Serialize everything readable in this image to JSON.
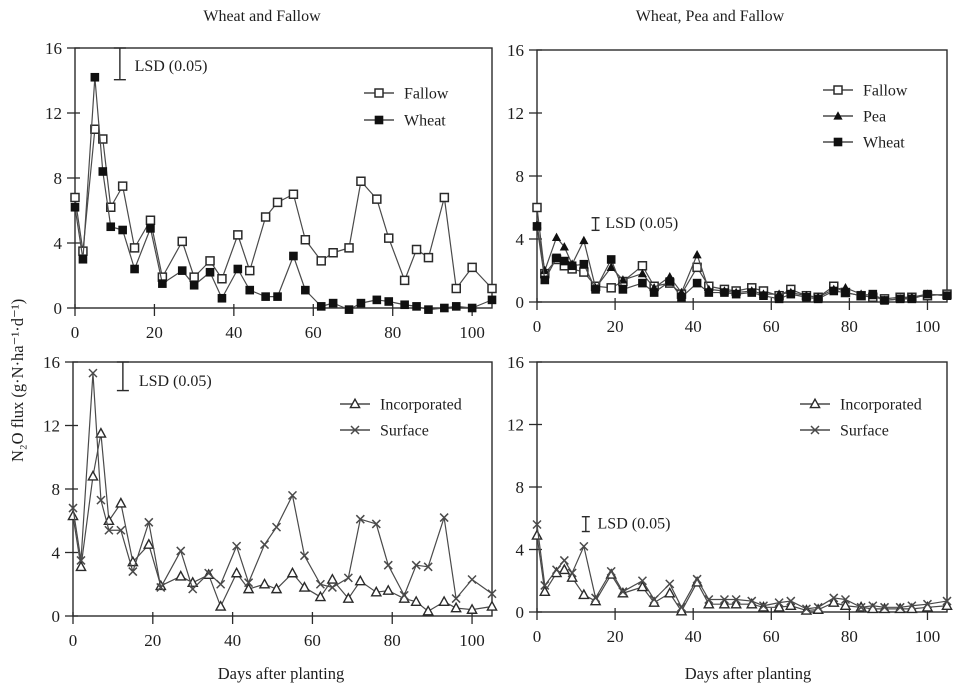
{
  "figure": {
    "ylabel": "N₂O flux (g·N·ha⁻¹·d⁻¹)",
    "ink": "#2a2a2a",
    "line_color": "#4a4a4a",
    "marker_fill": "#101010",
    "background": "#ffffff"
  },
  "chart_data": [
    {
      "type": "line",
      "title": "Wheat and Fallow",
      "xlabel": "",
      "ylim": [
        0,
        16
      ],
      "xlim": [
        0,
        105
      ],
      "yticks": [
        0,
        4,
        8,
        12,
        16
      ],
      "xticks": [
        0,
        20,
        40,
        60,
        80,
        100
      ],
      "grid": false,
      "legend_position": "upper-right",
      "lsd": {
        "label": "LSD (0.05)",
        "day": 11.3,
        "top": 16.0,
        "bottom": 14.05,
        "label_day": 15,
        "label_y": 14.6,
        "cap": 6
      },
      "legend": [
        {
          "label": "Fallow",
          "marker": "square-open"
        },
        {
          "label": "Wheat",
          "marker": "square-filled"
        }
      ],
      "x": [
        0,
        2,
        5,
        7,
        9,
        12,
        15,
        19,
        22,
        27,
        30,
        34,
        37,
        41,
        44,
        48,
        51,
        55,
        58,
        62,
        65,
        69,
        72,
        76,
        79,
        83,
        86,
        89,
        93,
        96,
        100,
        105
      ],
      "series": [
        {
          "name": "Fallow",
          "marker": "square-open",
          "values": [
            6.8,
            3.5,
            11.0,
            10.4,
            6.2,
            7.5,
            3.7,
            5.4,
            1.9,
            4.1,
            1.9,
            2.9,
            1.8,
            4.5,
            2.3,
            5.6,
            6.5,
            7.0,
            4.2,
            2.9,
            3.4,
            3.7,
            7.8,
            6.7,
            4.3,
            1.7,
            3.6,
            3.1,
            6.8,
            1.2,
            2.5,
            1.2
          ]
        },
        {
          "name": "Wheat",
          "marker": "square-filled",
          "values": [
            6.2,
            3.0,
            14.2,
            8.4,
            5.0,
            4.8,
            2.4,
            4.9,
            1.5,
            2.3,
            1.4,
            2.2,
            0.6,
            2.4,
            1.1,
            0.7,
            0.7,
            3.2,
            1.1,
            0.1,
            0.3,
            -0.1,
            0.3,
            0.5,
            0.4,
            0.2,
            0.1,
            -0.1,
            0.0,
            0.1,
            0.0,
            0.5
          ]
        }
      ]
    },
    {
      "type": "line",
      "title": "Wheat, Pea and Fallow",
      "xlabel": "",
      "ylim": [
        0,
        16
      ],
      "xlim": [
        0,
        105
      ],
      "yticks": [
        0,
        4,
        8,
        12,
        16
      ],
      "xticks": [
        0,
        20,
        40,
        60,
        80,
        100
      ],
      "grid": false,
      "legend_position": "upper-right",
      "lsd": {
        "label": "LSD (0.05)",
        "day": 15,
        "top": 5.35,
        "bottom": 4.55,
        "label_day": 17.5,
        "label_y": 4.7,
        "cap": 4
      },
      "legend": [
        {
          "label": "Fallow",
          "marker": "square-open"
        },
        {
          "label": "Pea",
          "marker": "triangle-filled"
        },
        {
          "label": "Wheat",
          "marker": "square-filled"
        }
      ],
      "x": [
        0,
        2,
        5,
        7,
        9,
        12,
        15,
        19,
        22,
        27,
        30,
        34,
        37,
        41,
        44,
        48,
        51,
        55,
        58,
        62,
        65,
        69,
        72,
        76,
        79,
        83,
        86,
        89,
        93,
        96,
        100,
        105
      ],
      "series": [
        {
          "name": "Fallow",
          "marker": "square-open",
          "values": [
            6.0,
            1.8,
            2.7,
            2.3,
            2.1,
            1.9,
            1.0,
            0.9,
            1.3,
            2.3,
            1.0,
            1.2,
            0.5,
            2.2,
            1.0,
            0.8,
            0.7,
            0.9,
            0.7,
            0.4,
            0.8,
            0.4,
            0.3,
            1.0,
            0.6,
            0.4,
            0.3,
            0.2,
            0.3,
            0.3,
            0.4,
            0.5
          ]
        },
        {
          "name": "Pea",
          "marker": "triangle-filled",
          "values": [
            4.9,
            2.0,
            4.1,
            3.5,
            2.4,
            3.9,
            0.9,
            2.2,
            1.4,
            1.8,
            0.9,
            1.6,
            0.6,
            3.0,
            0.8,
            0.7,
            0.6,
            0.7,
            0.5,
            0.5,
            0.6,
            0.4,
            0.3,
            0.8,
            0.9,
            0.5,
            0.4,
            0.1,
            0.2,
            0.3,
            0.5,
            0.4
          ]
        },
        {
          "name": "Wheat",
          "marker": "square-filled",
          "values": [
            4.8,
            1.4,
            2.8,
            2.6,
            2.3,
            2.4,
            0.8,
            2.7,
            0.8,
            1.2,
            0.6,
            1.3,
            0.3,
            1.2,
            0.6,
            0.6,
            0.5,
            0.6,
            0.4,
            0.2,
            0.5,
            0.3,
            0.2,
            0.7,
            0.6,
            0.4,
            0.5,
            0.1,
            0.2,
            0.2,
            0.5,
            0.4
          ]
        }
      ]
    },
    {
      "type": "line",
      "title": "",
      "xlabel": "Days after planting",
      "ylim": [
        0,
        16
      ],
      "xlim": [
        0,
        105
      ],
      "yticks": [
        0,
        4,
        8,
        12,
        16
      ],
      "xticks": [
        0,
        20,
        40,
        60,
        80,
        100
      ],
      "grid": false,
      "legend_position": "upper-right",
      "lsd": {
        "label": "LSD (0.05)",
        "day": 12.5,
        "top": 16.0,
        "bottom": 14.2,
        "label_day": 16.5,
        "label_y": 14.5,
        "cap": 6
      },
      "legend": [
        {
          "label": "Incorporated",
          "marker": "triangle-open"
        },
        {
          "label": "Surface",
          "marker": "x-cross"
        }
      ],
      "x": [
        0,
        2,
        5,
        7,
        9,
        12,
        15,
        19,
        22,
        27,
        30,
        34,
        37,
        41,
        44,
        48,
        51,
        55,
        58,
        62,
        65,
        69,
        72,
        76,
        79,
        83,
        86,
        89,
        93,
        96,
        100,
        105
      ],
      "series": [
        {
          "name": "Incorporated",
          "marker": "triangle-open",
          "values": [
            6.3,
            3.1,
            8.8,
            11.5,
            6.0,
            7.1,
            3.4,
            4.5,
            1.9,
            2.5,
            2.1,
            2.6,
            0.6,
            2.7,
            1.7,
            2.0,
            1.7,
            2.7,
            1.8,
            1.2,
            2.3,
            1.1,
            2.2,
            1.5,
            1.6,
            1.1,
            0.9,
            0.3,
            0.9,
            0.5,
            0.4,
            0.6
          ]
        },
        {
          "name": "Surface",
          "marker": "x-cross",
          "values": [
            6.8,
            3.5,
            15.3,
            7.3,
            5.4,
            5.4,
            2.8,
            5.9,
            1.8,
            4.1,
            1.7,
            2.7,
            2.0,
            4.4,
            2.1,
            4.5,
            5.6,
            7.6,
            3.8,
            2.0,
            1.8,
            2.4,
            6.1,
            5.8,
            3.2,
            1.3,
            3.2,
            3.1,
            6.2,
            1.1,
            2.3,
            1.4
          ]
        }
      ]
    },
    {
      "type": "line",
      "title": "",
      "xlabel": "Days after planting",
      "ylim": [
        0,
        16
      ],
      "xlim": [
        0,
        105
      ],
      "yticks": [
        0,
        4,
        8,
        12,
        16
      ],
      "xticks": [
        0,
        20,
        40,
        60,
        80,
        100
      ],
      "grid": false,
      "legend_position": "upper-right",
      "lsd": {
        "label": "LSD (0.05)",
        "day": 12.5,
        "top": 6.1,
        "bottom": 5.15,
        "label_day": 15.5,
        "label_y": 5.35,
        "cap": 4
      },
      "legend": [
        {
          "label": "Incorporated",
          "marker": "triangle-open"
        },
        {
          "label": "Surface",
          "marker": "x-cross"
        }
      ],
      "x": [
        0,
        2,
        5,
        7,
        9,
        12,
        15,
        19,
        22,
        27,
        30,
        34,
        37,
        41,
        44,
        48,
        51,
        55,
        58,
        62,
        65,
        69,
        72,
        76,
        79,
        83,
        86,
        89,
        93,
        96,
        100,
        105
      ],
      "series": [
        {
          "name": "Incorporated",
          "marker": "triangle-open",
          "values": [
            4.9,
            1.3,
            2.5,
            2.7,
            2.2,
            1.1,
            0.7,
            2.4,
            1.2,
            1.6,
            0.6,
            1.2,
            0.05,
            1.9,
            0.5,
            0.5,
            0.5,
            0.5,
            0.3,
            0.3,
            0.4,
            0.1,
            0.15,
            0.6,
            0.4,
            0.3,
            0.2,
            0.2,
            0.2,
            0.2,
            0.3,
            0.4
          ]
        },
        {
          "name": "Surface",
          "marker": "x-cross",
          "values": [
            5.6,
            1.7,
            2.7,
            3.3,
            2.5,
            4.2,
            0.9,
            2.6,
            1.3,
            2.0,
            0.8,
            1.8,
            0.3,
            2.1,
            0.8,
            0.8,
            0.8,
            0.7,
            0.4,
            0.6,
            0.7,
            0.2,
            0.3,
            0.9,
            0.8,
            0.3,
            0.4,
            0.3,
            0.3,
            0.4,
            0.5,
            0.7
          ]
        }
      ]
    }
  ]
}
